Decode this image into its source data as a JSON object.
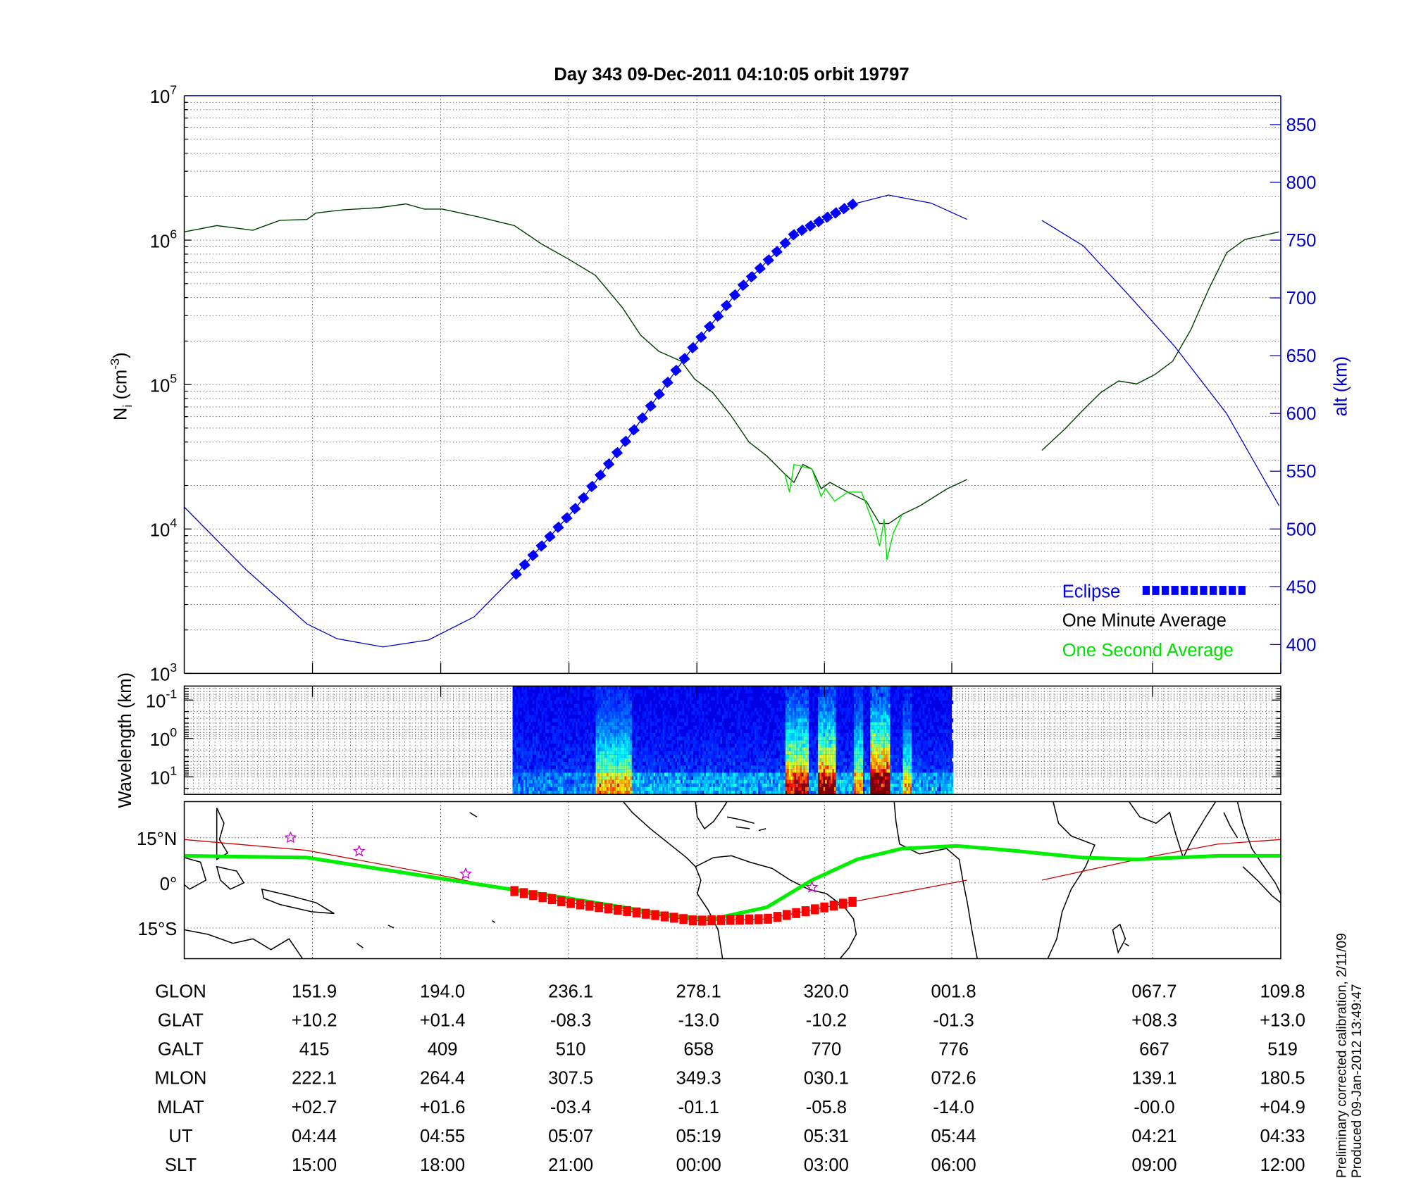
{
  "title": "Day 343  09-Dec-2011 04:10:05   orbit 19797",
  "side_notes": [
    "Preliminary corrected calibration, 2/11/09",
    "Produced 09-Jan-2012 13:49:47"
  ],
  "colors": {
    "eclipse": "#0000ff",
    "one_minute": "#004000",
    "one_second": "#00e000",
    "altitude": "#0000cc",
    "track": "#00ee00",
    "orbit_track": "#cc0000",
    "eclipse_map": "#ff0000",
    "stars": "#cc00cc"
  },
  "chart_data": [
    {
      "type": "line",
      "panel": "density",
      "ylabel": "N",
      "ylabel_sub": "i",
      "ylabel_unit": " (cm",
      "ylabel_exp": "-3",
      "ylabel_close": ")",
      "yscale": "log",
      "ylim": [
        1000,
        10000000
      ],
      "y_ticks": [
        {
          "base": "10",
          "exp": "3",
          "v": 1000
        },
        {
          "base": "10",
          "exp": "4",
          "v": 10000
        },
        {
          "base": "10",
          "exp": "5",
          "v": 100000
        },
        {
          "base": "10",
          "exp": "6",
          "v": 1000000
        },
        {
          "base": "10",
          "exp": "7",
          "v": 10000000
        }
      ],
      "y2label": "alt (km)",
      "y2lim": [
        375,
        875
      ],
      "y2_ticks": [
        "400",
        "450",
        "500",
        "550",
        "600",
        "650",
        "700",
        "750",
        "800",
        "850"
      ],
      "xlim_glon": [
        109.8,
        469.8
      ],
      "x_ticks_glon": [
        151.9,
        194.0,
        236.1,
        278.1,
        320.0,
        361.8,
        427.7,
        469.8
      ],
      "grid": true,
      "legend": {
        "placement": "bottom-right",
        "entries": [
          "Eclipse",
          "One Minute Average",
          "One Second Average"
        ]
      },
      "series": [
        {
          "name": "One Minute Average",
          "segments": [
            [
              [
                109.8,
                1140000.0
              ],
              [
                120.5,
                1260000.0
              ],
              [
                132.3,
                1170000.0
              ],
              [
                141.2,
                1370000.0
              ],
              [
                150.1,
                1390000.0
              ],
              [
                153.0,
                1540000.0
              ],
              [
                161.9,
                1620000.0
              ],
              [
                173.8,
                1680000.0
              ],
              [
                182.6,
                1780000.0
              ],
              [
                188.6,
                1640000.0
              ],
              [
                194.5,
                1640000.0
              ],
              [
                206.3,
                1450000.0
              ],
              [
                218.2,
                1260000.0
              ],
              [
                227.1,
                940000.0
              ],
              [
                235.9,
                740000.0
              ],
              [
                244.8,
                570000.0
              ],
              [
                253.7,
                340000.0
              ],
              [
                259.6,
                220000.0
              ],
              [
                265.6,
                170000.0
              ],
              [
                273.0,
                145000.0
              ],
              [
                277.4,
                109000.0
              ],
              [
                283.3,
                88000.0
              ],
              [
                289.3,
                61000.0
              ],
              [
                295.2,
                40000.0
              ],
              [
                301.1,
                32000.0
              ],
              [
                307.0,
                24000.0
              ],
              [
                310.0,
                21000.0
              ],
              [
                312.9,
                28000.0
              ],
              [
                315.9,
                26000.0
              ],
              [
                318.9,
                19000.0
              ],
              [
                321.8,
                21000.0
              ],
              [
                327.7,
                18000.0
              ],
              [
                333.7,
                15600.0
              ],
              [
                338.1,
                10900.0
              ],
              [
                341.1,
                10900.0
              ],
              [
                345.5,
                12600.0
              ],
              [
                351.4,
                14500.0
              ],
              [
                360.3,
                19000.0
              ],
              [
                366.8,
                22000.0
              ]
            ],
            [
              [
                391.4,
                35000.0
              ],
              [
                398.8,
                49000.0
              ],
              [
                404.7,
                66000.0
              ],
              [
                410.7,
                88000.0
              ],
              [
                416.6,
                106000.0
              ],
              [
                422.5,
                101000.0
              ],
              [
                428.4,
                117000.0
              ],
              [
                434.3,
                145000.0
              ],
              [
                440.3,
                240000.0
              ],
              [
                446.2,
                460000.0
              ],
              [
                452.1,
                820000.0
              ],
              [
                458.0,
                1010000.0
              ],
              [
                469.3,
                1140000.0
              ]
            ]
          ]
        },
        {
          "name": "One Second Average",
          "segments": [
            [
              [
                307.0,
                24000.0
              ],
              [
                308.5,
                18000.0
              ],
              [
                310.0,
                28000.0
              ],
              [
                315.9,
                26000.0
              ],
              [
                318.9,
                16800.0
              ],
              [
                320.3,
                19000.0
              ],
              [
                323.3,
                15600.0
              ],
              [
                327.7,
                18000.0
              ],
              [
                332.2,
                18000.0
              ],
              [
                336.6,
                10100.0
              ],
              [
                338.1,
                7600.0
              ],
              [
                339.6,
                11700.0
              ],
              [
                340.5,
                6100.0
              ],
              [
                342.6,
                9400.0
              ],
              [
                345.5,
                12600.0
              ]
            ]
          ]
        },
        {
          "name": "alt (km)",
          "axis": "right",
          "segments": [
            [
              [
                109.8,
                519
              ],
              [
                130,
                465
              ],
              [
                150,
                418
              ],
              [
                160,
                405
              ],
              [
                175,
                398
              ],
              [
                190,
                404
              ],
              [
                205,
                424
              ],
              [
                218.8,
                461
              ],
              [
                238.9,
                520
              ],
              [
                256.7,
                583
              ],
              [
                274.4,
                649
              ],
              [
                292.2,
                708
              ],
              [
                310,
                755
              ],
              [
                329.2,
                781
              ],
              [
                341,
                789
              ],
              [
                355,
                782
              ],
              [
                366.8,
                768
              ]
            ],
            [
              [
                391.4,
                767
              ],
              [
                405,
                745
              ],
              [
                420,
                702
              ],
              [
                435,
                658
              ],
              [
                452,
                600
              ],
              [
                469.3,
                520
              ]
            ]
          ]
        }
      ],
      "eclipse_glon": [
        218.8,
        329.2
      ]
    },
    {
      "type": "heatmap",
      "panel": "spectrogram",
      "ylabel": "Wavelength (km)",
      "yscale": "log",
      "y_reversed": true,
      "y_ticks": [
        {
          "base": "10",
          "exp": "-1"
        },
        {
          "base": "10",
          "exp": "0"
        },
        {
          "base": "10",
          "exp": "1"
        }
      ],
      "data_glon": [
        217.6,
        361.8
      ],
      "colormap": "jet",
      "enhanced_intervals_glon": [
        [
          244.8,
          256.7,
          0.45
        ],
        [
          307.0,
          314.4,
          0.7
        ],
        [
          317.4,
          323.3,
          0.8
        ],
        [
          329.2,
          332.2,
          0.5
        ],
        [
          334.9,
          341.1,
          0.95
        ],
        [
          345.5,
          348.5,
          0.4
        ]
      ]
    },
    {
      "type": "line",
      "panel": "map",
      "y_ticks": [
        "15°N",
        "0°",
        "15°S"
      ],
      "ylim_lat": [
        -25,
        27
      ],
      "series": [
        {
          "name": "track",
          "points": [
            [
              109.8,
              9.0
            ],
            [
              150.1,
              8.4
            ],
            [
              197.5,
              0.9
            ],
            [
              235.9,
              -5.1
            ],
            [
              271.5,
              -11.1
            ],
            [
              283.3,
              -12.0
            ],
            [
              301.1,
              -8.1
            ],
            [
              315.9,
              0.9
            ],
            [
              330.7,
              7.8
            ],
            [
              345.5,
              11.4
            ],
            [
              363.3,
              12.3
            ],
            [
              381.0,
              10.8
            ],
            [
              404.7,
              8.4
            ],
            [
              422.5,
              7.8
            ],
            [
              449.2,
              9.0
            ],
            [
              469.8,
              9.0
            ]
          ]
        },
        {
          "name": "orbit",
          "segments": [
            [
              [
                109.8,
                14.4
              ],
              [
                150.1,
                10.8
              ],
              [
                197.5,
                1.8
              ],
              [
                235.9,
                -6.6
              ],
              [
                277.6,
                -12.6
              ],
              [
                301.1,
                -12.0
              ],
              [
                327.7,
                -6.6
              ],
              [
                366.8,
                0.9
              ]
            ],
            [
              [
                391.4,
                0.9
              ],
              [
                425.4,
                8.4
              ],
              [
                449.2,
                12.9
              ],
              [
                469.8,
                14.4
              ]
            ]
          ]
        }
      ],
      "eclipse_glon": [
        218.2,
        329.2
      ],
      "stars": [
        [
          144.7,
          15.0
        ],
        [
          167.2,
          10.5
        ],
        [
          202.2,
          3.0
        ],
        [
          315.9,
          -1.5
        ]
      ]
    }
  ],
  "table": {
    "rows": [
      {
        "label": "GLON",
        "values": [
          "151.9",
          "194.0",
          "236.1",
          "278.1",
          "320.0",
          "001.8",
          "067.7",
          "109.8"
        ]
      },
      {
        "label": "GLAT",
        "values": [
          "+10.2",
          "+01.4",
          "-08.3",
          "-13.0",
          "-10.2",
          "-01.3",
          "+08.3",
          "+13.0"
        ]
      },
      {
        "label": "GALT",
        "values": [
          "415",
          "409",
          "510",
          "658",
          "770",
          "776",
          "667",
          "519"
        ]
      },
      {
        "label": "MLON",
        "values": [
          "222.1",
          "264.4",
          "307.5",
          "349.3",
          "030.1",
          "072.6",
          "139.1",
          "180.5"
        ]
      },
      {
        "label": "MLAT",
        "values": [
          "+02.7",
          "+01.6",
          "-03.4",
          "-01.1",
          "-05.8",
          "-14.0",
          "-00.0",
          "+04.9"
        ]
      },
      {
        "label": "UT",
        "values": [
          "04:44",
          "04:55",
          "05:07",
          "05:19",
          "05:31",
          "05:44",
          "04:21",
          "04:33"
        ]
      },
      {
        "label": "SLT",
        "values": [
          "15:00",
          "18:00",
          "21:00",
          "00:00",
          "03:00",
          "06:00",
          "09:00",
          "12:00"
        ]
      }
    ]
  }
}
